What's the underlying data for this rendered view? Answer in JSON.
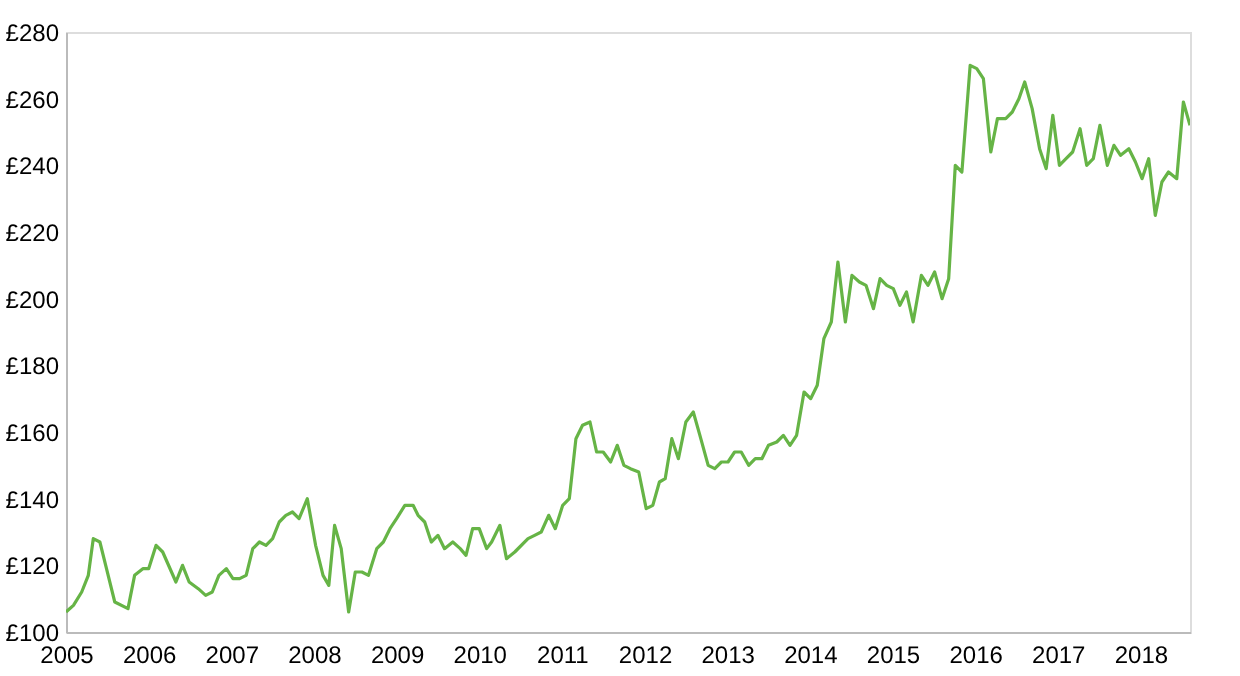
{
  "chart_data": {
    "type": "line",
    "line_style": "solid",
    "marker": "none",
    "grid": false,
    "legend": false,
    "xlim": [
      2005,
      2018.6
    ],
    "xticks": [
      2005,
      2006,
      2007,
      2008,
      2009,
      2010,
      2011,
      2012,
      2013,
      2014,
      2015,
      2016,
      2017,
      2018
    ],
    "ylim": [
      100,
      280
    ],
    "yticks": [
      {
        "value": 100,
        "label": "£100"
      },
      {
        "value": 120,
        "label": "£120"
      },
      {
        "value": 140,
        "label": "£140"
      },
      {
        "value": 160,
        "label": "£160"
      },
      {
        "value": 180,
        "label": "£180"
      },
      {
        "value": 200,
        "label": "£200"
      },
      {
        "value": 220,
        "label": "£220"
      },
      {
        "value": 240,
        "label": "£240"
      },
      {
        "value": 260,
        "label": "£260"
      },
      {
        "value": 280,
        "label": "£280"
      }
    ],
    "series": [
      {
        "color": "#66b446",
        "x": [
          2005.0,
          2005.09,
          2005.19,
          2005.27,
          2005.33,
          2005.41,
          2005.49,
          2005.59,
          2005.75,
          2005.83,
          2005.93,
          2006.0,
          2006.09,
          2006.17,
          2006.33,
          2006.41,
          2006.49,
          2006.6,
          2006.69,
          2006.77,
          2006.85,
          2006.94,
          2007.02,
          2007.1,
          2007.18,
          2007.26,
          2007.34,
          2007.42,
          2007.5,
          2007.58,
          2007.66,
          2007.74,
          2007.82,
          2007.92,
          2008.02,
          2008.11,
          2008.18,
          2008.25,
          2008.33,
          2008.42,
          2008.5,
          2008.58,
          2008.66,
          2008.76,
          2008.84,
          2008.92,
          2009.0,
          2009.1,
          2009.2,
          2009.26,
          2009.34,
          2009.42,
          2009.5,
          2009.58,
          2009.68,
          2009.77,
          2009.84,
          2009.92,
          2010.0,
          2010.09,
          2010.15,
          2010.25,
          2010.33,
          2010.43,
          2010.59,
          2010.67,
          2010.75,
          2010.84,
          2010.92,
          2011.01,
          2011.09,
          2011.17,
          2011.25,
          2011.34,
          2011.42,
          2011.5,
          2011.59,
          2011.67,
          2011.75,
          2011.83,
          2011.93,
          2012.02,
          2012.1,
          2012.18,
          2012.25,
          2012.33,
          2012.41,
          2012.5,
          2012.59,
          2012.67,
          2012.77,
          2012.85,
          2012.93,
          2013.01,
          2013.09,
          2013.17,
          2013.26,
          2013.34,
          2013.42,
          2013.5,
          2013.6,
          2013.68,
          2013.76,
          2013.84,
          2013.93,
          2014.01,
          2014.09,
          2014.17,
          2014.26,
          2014.34,
          2014.43,
          2014.51,
          2014.6,
          2014.68,
          2014.77,
          2014.85,
          2014.93,
          2015.01,
          2015.09,
          2015.17,
          2015.25,
          2015.35,
          2015.43,
          2015.51,
          2015.6,
          2015.68,
          2015.76,
          2015.84,
          2015.94,
          2016.02,
          2016.1,
          2016.19,
          2016.27,
          2016.37,
          2016.45,
          2016.53,
          2016.6,
          2016.69,
          2016.78,
          2016.86,
          2016.94,
          2017.02,
          2017.1,
          2017.18,
          2017.27,
          2017.35,
          2017.43,
          2017.51,
          2017.6,
          2017.68,
          2017.76,
          2017.86,
          2017.94,
          2018.02,
          2018.1,
          2018.18,
          2018.26,
          2018.34,
          2018.44,
          2018.52,
          2018.6
        ],
        "values": [
          106,
          108,
          112,
          117,
          128,
          127,
          119,
          109,
          107,
          117,
          119,
          119,
          126,
          124,
          115,
          120,
          115,
          113,
          111,
          112,
          117,
          119,
          116,
          116,
          117,
          125,
          127,
          126,
          128,
          133,
          135,
          136,
          134,
          140,
          126,
          117,
          114,
          132,
          125,
          106,
          118,
          118,
          117,
          125,
          127,
          131,
          134,
          138,
          138,
          135,
          133,
          127,
          129,
          125,
          127,
          125,
          123,
          131,
          131,
          125,
          127,
          132,
          122,
          124,
          128,
          129,
          130,
          135,
          131,
          138,
          140,
          158,
          162,
          163,
          154,
          154,
          151,
          156,
          150,
          149,
          148,
          137,
          138,
          145,
          146,
          158,
          152,
          163,
          166,
          159,
          150,
          149,
          151,
          151,
          154,
          154,
          150,
          152,
          152,
          156,
          157,
          159,
          156,
          159,
          172,
          170,
          174,
          188,
          193,
          211,
          193,
          207,
          205,
          204,
          197,
          206,
          204,
          203,
          198,
          202,
          193,
          207,
          204,
          208,
          200,
          206,
          240,
          238,
          270,
          269,
          266,
          244,
          254,
          254,
          256,
          260,
          265,
          257,
          245,
          239,
          255,
          240,
          242,
          244,
          251,
          240,
          242,
          252,
          240,
          246,
          243,
          245,
          241,
          236,
          242,
          225,
          235,
          238,
          236,
          259,
          252
        ]
      }
    ]
  }
}
